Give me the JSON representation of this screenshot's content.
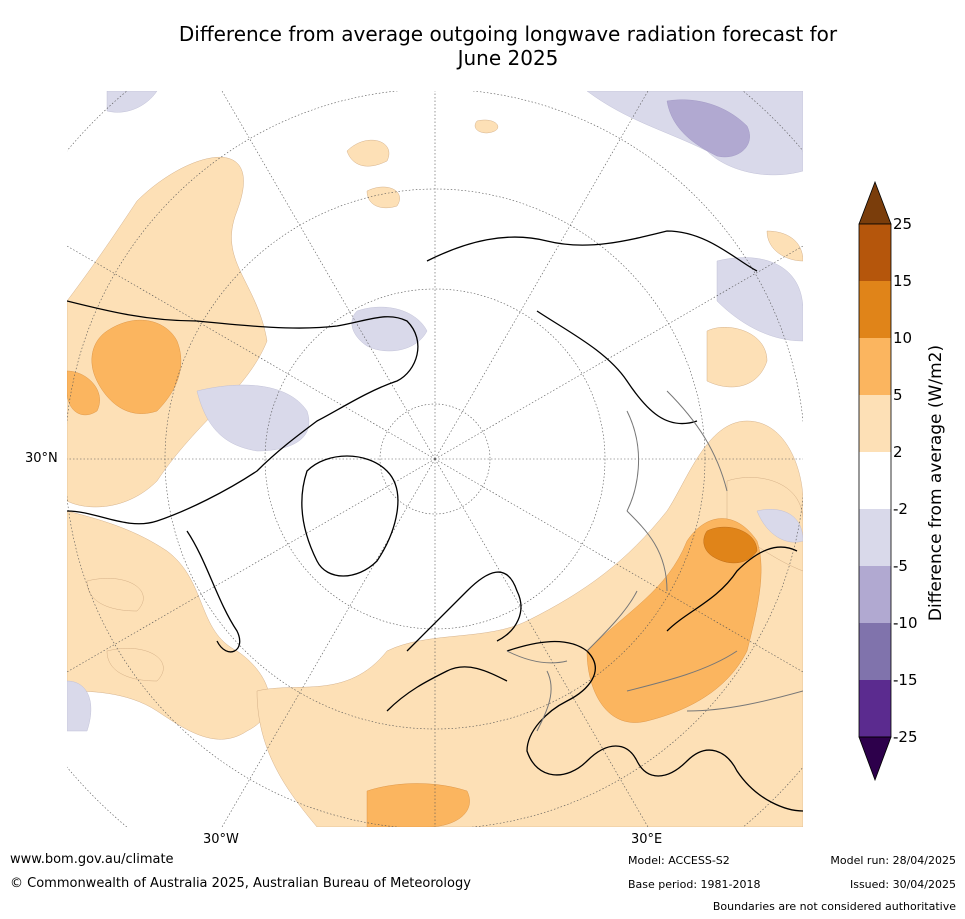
{
  "title_line1": "Difference from average outgoing longwave radiation forecast for",
  "title_line2": "June 2025",
  "map": {
    "projection": "north polar stereographic",
    "lat_label": "30°N",
    "lon_labels": [
      "30°W",
      "30°E"
    ]
  },
  "colorbar": {
    "label": "Difference from average (W/m2)",
    "ticks": [
      "25",
      "15",
      "10",
      "5",
      "2",
      "-2",
      "-5",
      "-10",
      "-15",
      "-25"
    ],
    "colors": {
      "gt25": "#7a3d0b",
      "15_25": "#b5560c",
      "10_15": "#e08419",
      "5_10": "#fbb55f",
      "2_5": "#fde0b6",
      "neutral": "#ffffff",
      "m2_m5": "#d9d9ea",
      "m5_m10": "#b1a9d1",
      "m10_m15": "#8073ac",
      "m15_m25": "#5b2b8f",
      "lt_m25": "#2d004b"
    }
  },
  "footer": {
    "website": "www.bom.gov.au/climate",
    "copyright": "© Commonwealth of Australia 2025, Australian Bureau of Meteorology",
    "model": "Model: ACCESS-S2",
    "base_period": "Base period: 1981-2018",
    "model_run": "Model run: 28/04/2025",
    "issued": "Issued: 30/04/2025",
    "disclaimer": "Boundaries are not considered authoritative"
  }
}
